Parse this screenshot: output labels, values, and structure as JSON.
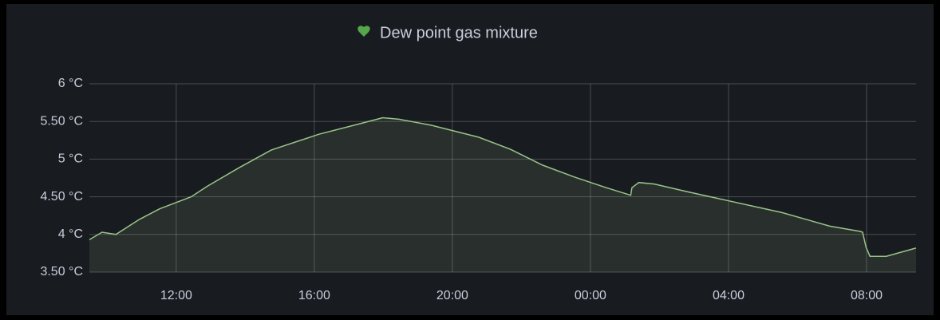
{
  "chart_data": {
    "type": "area",
    "title": "Dew point gas mixture",
    "x": [
      "09:29",
      "09:51",
      "10:15",
      "10:56",
      "11:31",
      "12:26",
      "12:54",
      "13:50",
      "14:45",
      "16:08",
      "17:04",
      "17:59",
      "18:27",
      "19:23",
      "20:46",
      "21:41",
      "22:37",
      "23:33",
      "00:28",
      "01:10",
      "01:12",
      "01:24",
      "01:51",
      "02:47",
      "04:10",
      "05:33",
      "06:56",
      "07:49",
      "07:53",
      "07:59",
      "08:06",
      "08:34",
      "09:26"
    ],
    "series": [
      {
        "name": "Dew point gas mixture",
        "color": "#9ac48a",
        "values": [
          3.93,
          4.03,
          4.0,
          4.2,
          4.34,
          4.5,
          4.64,
          4.89,
          5.12,
          5.33,
          5.44,
          5.55,
          5.53,
          5.45,
          5.29,
          5.13,
          4.92,
          4.76,
          4.62,
          4.52,
          4.62,
          4.69,
          4.67,
          4.57,
          4.43,
          4.29,
          4.11,
          4.04,
          4.03,
          3.83,
          3.71,
          3.71,
          3.82
        ]
      }
    ],
    "xlim": [
      "09:29",
      "09:26"
    ],
    "xticks": [
      "12:00",
      "16:00",
      "20:00",
      "00:00",
      "04:00",
      "08:00"
    ],
    "ylim": [
      3.5,
      6
    ],
    "yticks": [
      {
        "value": 3.5,
        "label": "3.50 °C"
      },
      {
        "value": 4,
        "label": "4 °C"
      },
      {
        "value": 4.5,
        "label": "4.50 °C"
      },
      {
        "value": 5,
        "label": "5 °C"
      },
      {
        "value": 5.5,
        "label": "5.50 °C"
      },
      {
        "value": 6,
        "label": "6 °C"
      }
    ],
    "grid": true
  }
}
